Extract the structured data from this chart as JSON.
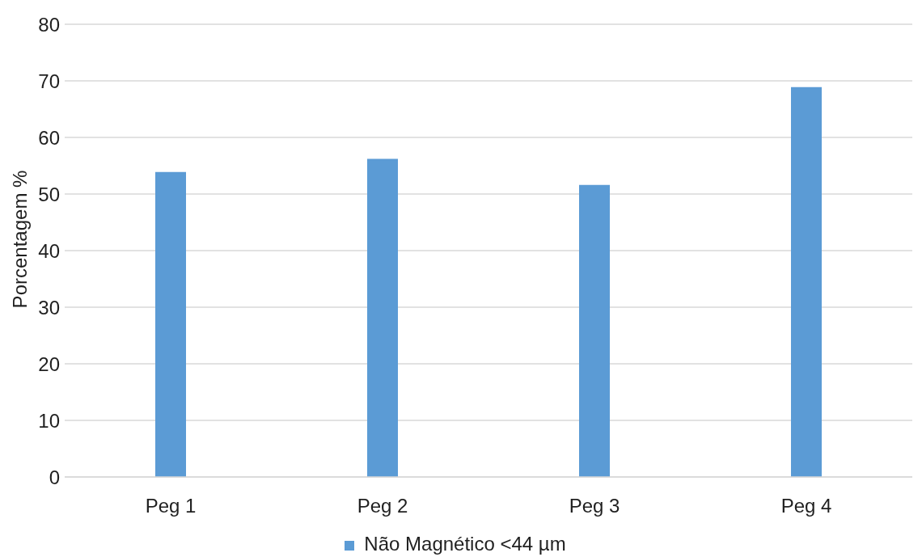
{
  "chart_data": {
    "type": "bar",
    "ylabel": "Porcentagem %",
    "categories": [
      "Peg 1",
      "Peg 2",
      "Peg 3",
      "Peg 4"
    ],
    "series": [
      {
        "name": "Não Magnético <44 µm",
        "color": "#5b9bd5",
        "values": [
          53.9,
          56.2,
          51.6,
          68.9
        ]
      }
    ],
    "ylim": [
      0,
      80
    ],
    "yticks": [
      0,
      10,
      20,
      30,
      40,
      50,
      60,
      70,
      80
    ],
    "grid": "y",
    "legend": "bottom"
  }
}
